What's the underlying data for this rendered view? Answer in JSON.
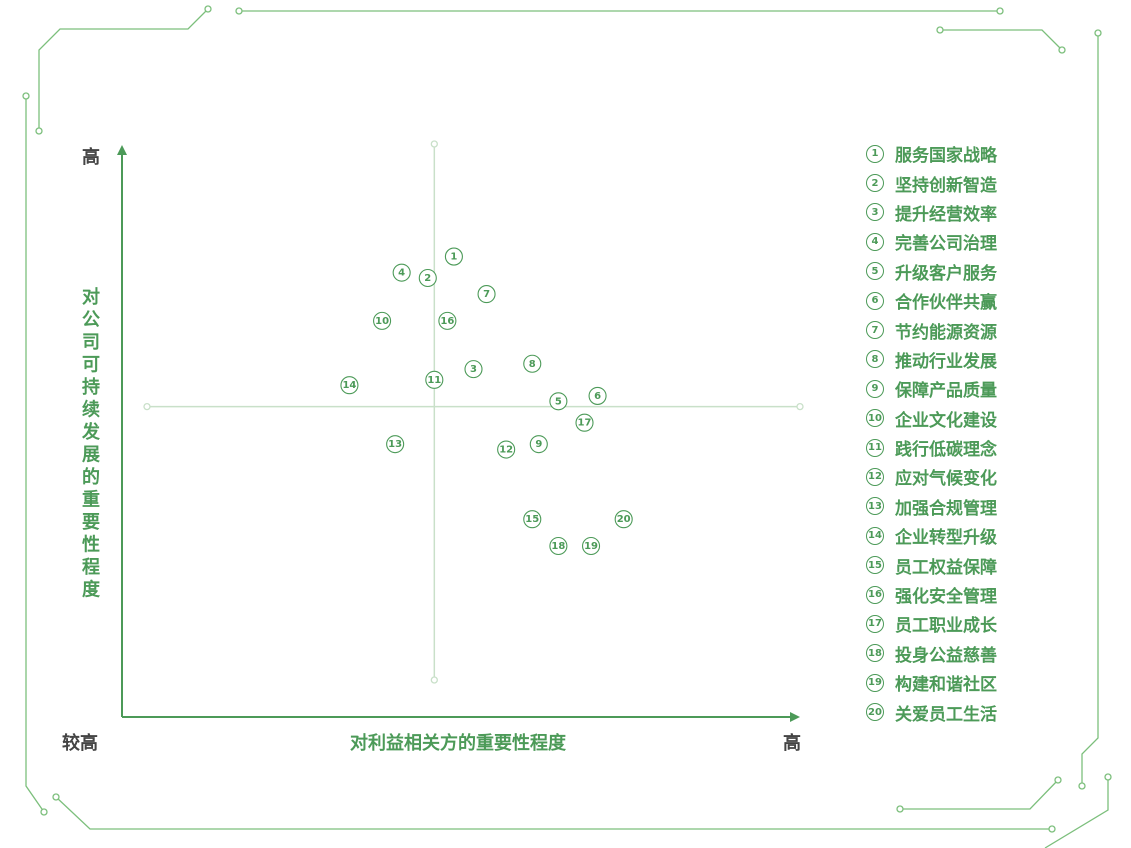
{
  "chart_data": {
    "type": "scatter",
    "y_title": "对公司可持续发展的重要性程度",
    "x_title": "对利益相关方的重要性程度",
    "y_high_label": "高",
    "x_low_label": "较高",
    "x_high_label": "高",
    "quadrant_lines": true,
    "colors": {
      "accent": "#4c9a58",
      "quadrant_line": "#c9e0c9",
      "axis_text": "#444444"
    },
    "points": [
      {
        "id": 1,
        "label": "①",
        "name": "服务国家战略",
        "x": 47,
        "y": 79
      },
      {
        "id": 2,
        "label": "②",
        "name": "坚持创新智造",
        "x": 43,
        "y": 75
      },
      {
        "id": 3,
        "label": "③",
        "name": "提升经营效率",
        "x": 50,
        "y": 58
      },
      {
        "id": 4,
        "label": "④",
        "name": "完善公司治理",
        "x": 39,
        "y": 76
      },
      {
        "id": 5,
        "label": "⑤",
        "name": "升级客户服务",
        "x": 63,
        "y": 52
      },
      {
        "id": 6,
        "label": "⑥",
        "name": "合作伙伴共赢",
        "x": 69,
        "y": 53
      },
      {
        "id": 7,
        "label": "⑦",
        "name": "节约能源资源",
        "x": 52,
        "y": 72
      },
      {
        "id": 8,
        "label": "⑧",
        "name": "推动行业发展",
        "x": 59,
        "y": 59
      },
      {
        "id": 9,
        "label": "⑨",
        "name": "保障产品质量",
        "x": 60,
        "y": 44
      },
      {
        "id": 10,
        "label": "⑩",
        "name": "企业文化建设",
        "x": 36,
        "y": 67
      },
      {
        "id": 11,
        "label": "⑪",
        "name": "践行低碳理念",
        "x": 44,
        "y": 56
      },
      {
        "id": 12,
        "label": "⑫",
        "name": "应对气候变化",
        "x": 55,
        "y": 43
      },
      {
        "id": 13,
        "label": "⑬",
        "name": "加强合规管理",
        "x": 38,
        "y": 44
      },
      {
        "id": 14,
        "label": "⑭",
        "name": "企业转型升级",
        "x": 31,
        "y": 55
      },
      {
        "id": 15,
        "label": "⑮",
        "name": "员工权益保障",
        "x": 59,
        "y": 30
      },
      {
        "id": 16,
        "label": "⑯",
        "name": "强化安全管理",
        "x": 46,
        "y": 67
      },
      {
        "id": 17,
        "label": "⑰",
        "name": "员工职业成长",
        "x": 67,
        "y": 48
      },
      {
        "id": 18,
        "label": "⑱",
        "name": "投身公益慈善",
        "x": 63,
        "y": 25
      },
      {
        "id": 19,
        "label": "⑲",
        "name": "构建和谐社区",
        "x": 68,
        "y": 25
      },
      {
        "id": 20,
        "label": "⑳",
        "name": "关爱员工生活",
        "x": 73,
        "y": 30
      }
    ]
  }
}
